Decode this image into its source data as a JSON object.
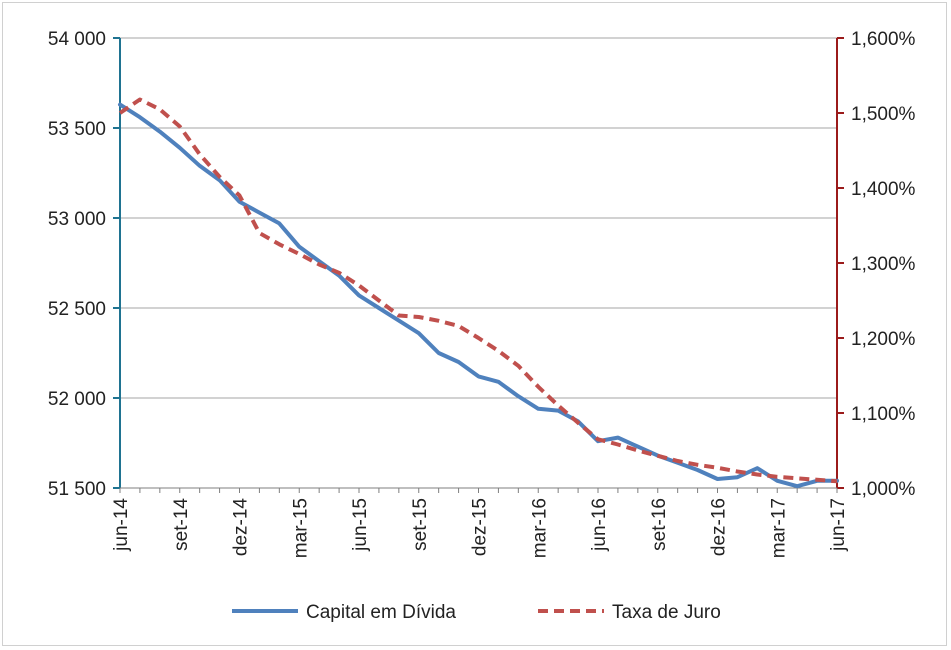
{
  "chart_data": {
    "type": "line",
    "title": "",
    "x": [
      "jun-14",
      "jul-14",
      "ago-14",
      "set-14",
      "out-14",
      "nov-14",
      "dez-14",
      "jan-15",
      "fev-15",
      "mar-15",
      "abr-15",
      "mai-15",
      "jun-15",
      "jul-15",
      "ago-15",
      "set-15",
      "out-15",
      "nov-15",
      "dez-15",
      "jan-16",
      "fev-16",
      "mar-16",
      "abr-16",
      "mai-16",
      "jun-16",
      "jul-16",
      "ago-16",
      "set-16",
      "out-16",
      "nov-16",
      "dez-16",
      "jan-17",
      "fev-17",
      "mar-17",
      "abr-17",
      "mai-17",
      "jun-17"
    ],
    "x_tick_labels": [
      "jun-14",
      "set-14",
      "dez-14",
      "mar-15",
      "jun-15",
      "set-15",
      "dez-15",
      "mar-16",
      "jun-16",
      "set-16",
      "dez-16",
      "mar-17",
      "jun-17"
    ],
    "series": [
      {
        "name": "Capital em Dívida",
        "axis": "left",
        "color": "#4f81bd",
        "style": "solid",
        "values": [
          53630,
          53560,
          53480,
          53390,
          53290,
          53210,
          53090,
          53030,
          52970,
          52840,
          52760,
          52680,
          52570,
          52500,
          52430,
          52360,
          52250,
          52200,
          52120,
          52090,
          52010,
          51940,
          51930,
          51870,
          51760,
          51780,
          51730,
          51680,
          51640,
          51600,
          51550,
          51560,
          51610,
          51540,
          51510,
          51540,
          51540
        ]
      },
      {
        "name": "Taxa de Juro",
        "axis": "right",
        "color": "#c0504d",
        "style": "dashed",
        "values": [
          1.5,
          1.518,
          1.505,
          1.482,
          1.445,
          1.415,
          1.39,
          1.34,
          1.325,
          1.312,
          1.298,
          1.287,
          1.27,
          1.25,
          1.23,
          1.228,
          1.223,
          1.216,
          1.2,
          1.183,
          1.163,
          1.135,
          1.11,
          1.087,
          1.065,
          1.058,
          1.05,
          1.043,
          1.036,
          1.031,
          1.027,
          1.022,
          1.018,
          1.015,
          1.013,
          1.011,
          1.009
        ]
      }
    ],
    "y_left": {
      "min": 51500,
      "max": 54000,
      "step": 500,
      "tick_labels": [
        "51 500",
        "52 000",
        "52 500",
        "53 000",
        "53 500",
        "54 000"
      ],
      "color": "#1f7391"
    },
    "y_right": {
      "min": 1.0,
      "max": 1.6,
      "step": 0.1,
      "tick_labels": [
        "1,000%",
        "1,100%",
        "1,200%",
        "1,300%",
        "1,400%",
        "1,500%",
        "1,600%"
      ],
      "color": "#9b1b1b"
    },
    "grid": true,
    "legend_position": "bottom"
  }
}
